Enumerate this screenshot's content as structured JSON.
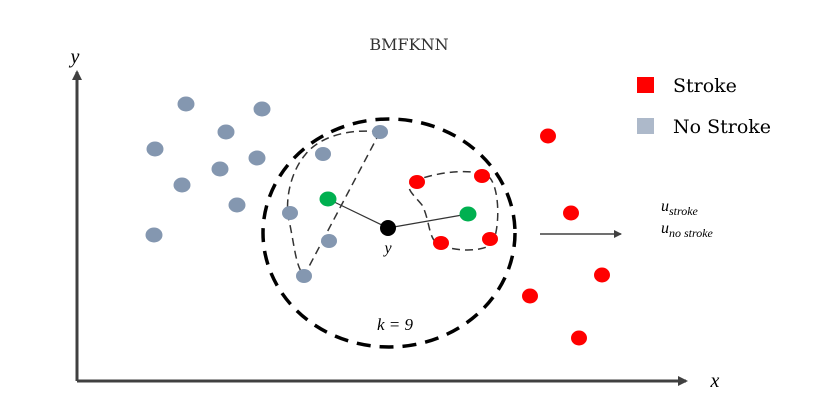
{
  "title": "BMFKNN",
  "axes": {
    "x_label": "x",
    "y_label": "y"
  },
  "legend": {
    "items": [
      {
        "label": "Stroke",
        "color": "#ff0000"
      },
      {
        "label": "No Stroke",
        "color": "#adb9ca"
      }
    ]
  },
  "colors": {
    "no_stroke_point": "#8497b0",
    "stroke_point": "#ff0000",
    "selected_point": "#00b050",
    "query_point": "#000000",
    "axis": "#404040",
    "boundary": "#000000"
  },
  "query_label": "y",
  "k_label": "k = 9",
  "outputs": {
    "stroke": {
      "base": "u",
      "sub": "stroke"
    },
    "no_stroke": {
      "base": "u",
      "sub": "no stroke"
    }
  }
}
